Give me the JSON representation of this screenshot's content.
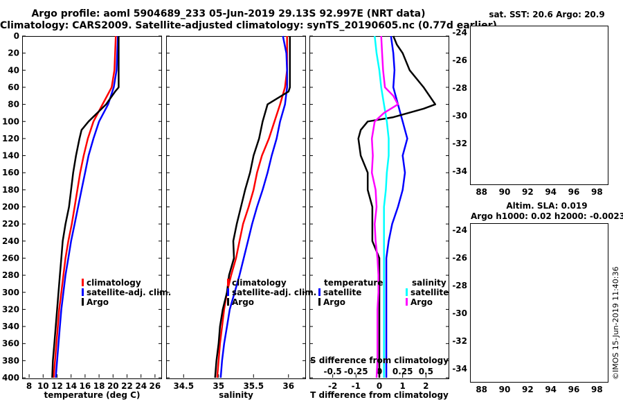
{
  "header": {
    "line1": "Argo profile: aoml 5904689_233 05-Jun-2019 29.13S 92.997E (NRT data)",
    "line2": "Climatology: CARS2009. Satellite-adjusted climatology: synTS_20190605.nc (0.77d earlier)"
  },
  "colors": {
    "climatology": "#ff0000",
    "satellite": "#0000ff",
    "argo": "#000000",
    "sal_clim": "#ff00ff",
    "sal_sat": "#00ffff"
  },
  "depth_axis": {
    "ticks": [
      0,
      20,
      40,
      60,
      80,
      100,
      120,
      140,
      160,
      180,
      200,
      220,
      240,
      260,
      280,
      300,
      320,
      340,
      360,
      380,
      400
    ],
    "range": [
      0,
      400
    ]
  },
  "chart_data": [
    {
      "type": "line",
      "panel": "temperature",
      "xlabel": "temperature (deg C)",
      "xlim": [
        7,
        27
      ],
      "xticks": [
        8,
        10,
        12,
        14,
        16,
        18,
        20,
        22,
        24,
        26
      ],
      "legend": [
        "climatology",
        "satellite-adj. clim.",
        "Argo"
      ],
      "series": [
        {
          "name": "climatology",
          "depth": [
            0,
            20,
            40,
            60,
            80,
            100,
            120,
            140,
            160,
            180,
            200,
            220,
            240,
            260,
            280,
            300,
            320,
            340,
            360,
            380,
            400
          ],
          "values": [
            20.4,
            20.3,
            20.2,
            19.8,
            18.5,
            17.2,
            16.4,
            15.8,
            15.3,
            14.9,
            14.5,
            14.1,
            13.6,
            13.2,
            12.9,
            12.6,
            12.3,
            12.1,
            11.9,
            11.7,
            11.5
          ]
        },
        {
          "name": "satellite-adj. clim.",
          "depth": [
            0,
            20,
            40,
            60,
            80,
            100,
            120,
            140,
            160,
            180,
            200,
            220,
            240,
            260,
            280,
            300,
            320,
            340,
            360,
            380,
            400
          ],
          "values": [
            20.7,
            20.6,
            20.5,
            20.1,
            19.3,
            18.0,
            17.2,
            16.5,
            16.0,
            15.5,
            15.0,
            14.5,
            14.0,
            13.6,
            13.2,
            12.9,
            12.6,
            12.4,
            12.2,
            12.0,
            11.8
          ]
        },
        {
          "name": "Argo",
          "depth": [
            0,
            20,
            40,
            60,
            65,
            80,
            100,
            110,
            120,
            140,
            160,
            180,
            200,
            220,
            240,
            260,
            280,
            300,
            320,
            340,
            360,
            380,
            400
          ],
          "values": [
            20.8,
            20.8,
            20.8,
            20.8,
            20.3,
            19.0,
            16.5,
            15.5,
            15.2,
            14.7,
            14.3,
            14.0,
            13.7,
            13.2,
            12.8,
            12.6,
            12.4,
            12.2,
            12.0,
            11.8,
            11.6,
            11.4,
            11.3
          ]
        }
      ]
    },
    {
      "type": "line",
      "panel": "salinity",
      "xlabel": "salinity",
      "xlim": [
        34.25,
        36.25
      ],
      "xticks": [
        34.5,
        35,
        35.5,
        36
      ],
      "xticklabels": [
        "34.5",
        "35",
        "35.5",
        "36"
      ],
      "legend": [
        "climatology",
        "satellite-adj. clim.",
        "Argo"
      ],
      "series": [
        {
          "name": "climatology",
          "depth": [
            0,
            20,
            40,
            60,
            80,
            100,
            120,
            140,
            160,
            180,
            200,
            220,
            240,
            260,
            280,
            300,
            320,
            340,
            360,
            380,
            400
          ],
          "values": [
            35.98,
            35.98,
            35.98,
            35.95,
            35.88,
            35.8,
            35.72,
            35.62,
            35.55,
            35.5,
            35.43,
            35.35,
            35.3,
            35.25,
            35.18,
            35.12,
            35.08,
            35.05,
            35.02,
            35.0,
            34.98
          ]
        },
        {
          "name": "satellite-adj. clim.",
          "depth": [
            0,
            20,
            40,
            60,
            80,
            100,
            120,
            140,
            160,
            180,
            200,
            220,
            240,
            260,
            280,
            300,
            320,
            340,
            360,
            380,
            400
          ],
          "values": [
            35.92,
            35.97,
            35.98,
            35.98,
            35.95,
            35.88,
            35.83,
            35.76,
            35.7,
            35.63,
            35.55,
            35.48,
            35.42,
            35.36,
            35.3,
            35.23,
            35.16,
            35.12,
            35.08,
            35.05,
            35.03
          ]
        },
        {
          "name": "Argo",
          "depth": [
            0,
            20,
            40,
            60,
            65,
            80,
            100,
            120,
            140,
            160,
            180,
            200,
            220,
            240,
            260,
            280,
            300,
            320,
            340,
            360,
            380,
            400
          ],
          "values": [
            36.02,
            36.02,
            36.02,
            36.02,
            36.0,
            35.7,
            35.63,
            35.58,
            35.5,
            35.45,
            35.38,
            35.32,
            35.26,
            35.21,
            35.22,
            35.15,
            35.12,
            35.06,
            35.02,
            35.0,
            34.97,
            34.95
          ]
        }
      ]
    },
    {
      "type": "line",
      "panel": "difference",
      "xlabel": "T difference from climatology",
      "xlabel_top": "S difference from climatology",
      "xlim": [
        -3,
        3
      ],
      "xticks": [
        -2,
        -1,
        0,
        1,
        2
      ],
      "top_ticks": [
        -0.5,
        -0.25,
        0,
        0.25,
        0.5
      ],
      "top_ticklabels": [
        "-0.5",
        "-0.25",
        "0",
        "0.25",
        "0.5"
      ],
      "legend_temperature_title": "temperature",
      "legend_salinity_title": "salinity",
      "legend_temperature": [
        "satellite",
        "Argo"
      ],
      "legend_salinity": [
        "satellite",
        "Argo"
      ],
      "series": [
        {
          "name": "T satellite",
          "depth": [
            0,
            20,
            40,
            60,
            80,
            100,
            120,
            140,
            160,
            180,
            200,
            220,
            240,
            260,
            280,
            300,
            320,
            340,
            360,
            380,
            400
          ],
          "values": [
            0.5,
            0.6,
            0.65,
            0.6,
            0.8,
            1.0,
            1.2,
            1.0,
            1.1,
            1.0,
            0.8,
            0.55,
            0.4,
            0.3,
            0.3,
            0.3,
            0.3,
            0.3,
            0.3,
            0.3,
            0.3
          ]
        },
        {
          "name": "T Argo",
          "depth": [
            0,
            10,
            20,
            40,
            60,
            80,
            85,
            95,
            100,
            110,
            120,
            140,
            160,
            180,
            200,
            220,
            240,
            260,
            280,
            300,
            320,
            340,
            360,
            380,
            400
          ],
          "values": [
            0.6,
            0.75,
            1.0,
            1.3,
            1.9,
            2.4,
            1.9,
            0.6,
            -0.5,
            -0.8,
            -0.9,
            -0.8,
            -0.5,
            -0.5,
            -0.3,
            -0.3,
            -0.3,
            0.0,
            0.0,
            0.0,
            0.0,
            0.0,
            0.0,
            0.0,
            0.0
          ]
        },
        {
          "name": "S satellite",
          "depth": [
            0,
            20,
            40,
            60,
            80,
            100,
            120,
            140,
            160,
            180,
            200,
            220,
            240,
            260,
            280,
            300,
            320,
            340,
            360,
            380,
            400
          ],
          "values": [
            -0.05,
            -0.03,
            0.0,
            0.02,
            0.05,
            0.08,
            0.1,
            0.1,
            0.08,
            0.07,
            0.05,
            0.05,
            0.05,
            0.05,
            0.05,
            0.05,
            0.05,
            0.05,
            0.05,
            0.05,
            0.05
          ]
        },
        {
          "name": "S Argo",
          "depth": [
            0,
            20,
            40,
            60,
            70,
            80,
            90,
            100,
            120,
            140,
            160,
            180,
            200,
            220,
            240,
            260,
            280,
            300,
            320,
            340,
            360,
            380,
            400
          ],
          "values": [
            0.02,
            0.03,
            0.04,
            0.06,
            0.15,
            0.2,
            0.05,
            -0.05,
            -0.08,
            -0.07,
            -0.08,
            -0.04,
            -0.03,
            -0.05,
            -0.04,
            -0.02,
            -0.01,
            -0.01,
            -0.02,
            -0.02,
            -0.02,
            -0.02,
            -0.03
          ]
        }
      ]
    },
    {
      "type": "heatmap",
      "panel": "sst_map",
      "title": "sat. SST: 20.6 Argo: 20.9",
      "xlim": [
        87,
        99
      ],
      "ylim": [
        -35,
        -23.5
      ],
      "xticks": [
        88,
        90,
        92,
        94,
        96,
        98
      ],
      "yticks": [
        -24,
        -26,
        -28,
        -30,
        -32,
        -34
      ]
    },
    {
      "type": "heatmap",
      "panel": "sla_map",
      "title": "Altim. SLA: 0.019",
      "subtitle": "Argo h1000: 0.02 h2000: -0.0023",
      "xlim": [
        87,
        99
      ],
      "ylim": [
        -35,
        -23.5
      ],
      "xticks": [
        88,
        90,
        92,
        94,
        96,
        98
      ],
      "yticks": [
        -24,
        -26,
        -28,
        -30,
        -32,
        -34
      ]
    }
  ],
  "credit": "©IMOS 15-Jun-2019 11:40:36"
}
